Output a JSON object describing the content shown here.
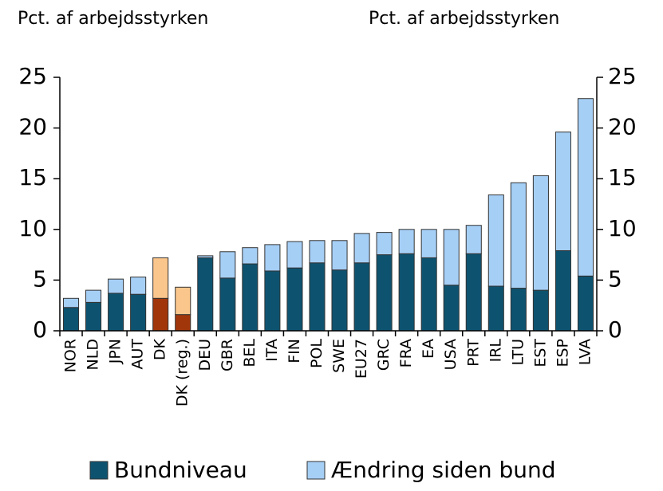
{
  "chart_data": {
    "type": "stacked_bar",
    "y_label_left": "Pct. af arbejdsstyrken",
    "y_label_right": "Pct. af arbejdsstyrken",
    "categories": [
      "NOR",
      "NLD",
      "JPN",
      "AUT",
      "DK",
      "DK (reg.)",
      "DEU",
      "GBR",
      "BEL",
      "ITA",
      "FIN",
      "POL",
      "SWE",
      "EU27",
      "GRC",
      "FRA",
      "EA",
      "USA",
      "PRT",
      "IRL",
      "LTU",
      "EST",
      "ESP",
      "LVA"
    ],
    "series": [
      {
        "name": "Bundniveau",
        "color": "#0d5370",
        "colors": [
          "#0d5370",
          "#0d5370",
          "#0d5370",
          "#0d5370",
          "#a2360b",
          "#a2360b",
          "#0d5370",
          "#0d5370",
          "#0d5370",
          "#0d5370",
          "#0d5370",
          "#0d5370",
          "#0d5370",
          "#0d5370",
          "#0d5370",
          "#0d5370",
          "#0d5370",
          "#0d5370",
          "#0d5370",
          "#0d5370",
          "#0d5370",
          "#0d5370",
          "#0d5370",
          "#0d5370"
        ],
        "values": [
          2.3,
          2.8,
          3.7,
          3.6,
          3.2,
          1.6,
          7.2,
          5.2,
          6.6,
          5.9,
          6.2,
          6.7,
          6.0,
          6.7,
          7.5,
          7.6,
          7.2,
          4.5,
          7.6,
          4.4,
          4.2,
          4.0,
          7.9,
          5.4
        ]
      },
      {
        "name": "Ændring siden bund",
        "color": "#a6cff6",
        "colors": [
          "#a6cff6",
          "#a6cff6",
          "#a6cff6",
          "#a6cff6",
          "#fbc68c",
          "#fbc68c",
          "#a6cff6",
          "#a6cff6",
          "#a6cff6",
          "#a6cff6",
          "#a6cff6",
          "#a6cff6",
          "#a6cff6",
          "#a6cff6",
          "#a6cff6",
          "#a6cff6",
          "#a6cff6",
          "#a6cff6",
          "#a6cff6",
          "#a6cff6",
          "#a6cff6",
          "#a6cff6",
          "#a6cff6",
          "#a6cff6"
        ],
        "values": [
          0.9,
          1.2,
          1.4,
          1.7,
          4.0,
          2.7,
          0.2,
          2.6,
          1.6,
          2.6,
          2.6,
          2.2,
          2.9,
          2.9,
          2.2,
          2.4,
          2.8,
          5.5,
          2.8,
          9.0,
          10.4,
          11.3,
          11.7,
          17.5
        ]
      }
    ],
    "ylim": [
      0,
      25
    ],
    "yticks": [
      0,
      5,
      10,
      15,
      20,
      25
    ],
    "y2lim": [
      0,
      25
    ],
    "y2ticks": [
      0,
      5,
      10,
      15,
      20,
      25
    ],
    "legend": "bottom"
  }
}
